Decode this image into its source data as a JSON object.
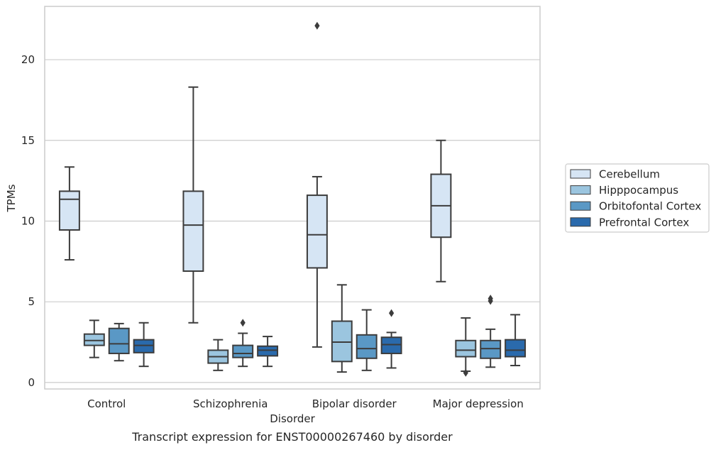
{
  "chart_data": {
    "type": "box",
    "title": "",
    "xlabel": "Disorder",
    "ylabel": "TPMs",
    "caption": "Transcript expression for ENST00000267460 by disorder",
    "categories": [
      "Control",
      "Schizophrenia",
      "Bipolar disorder",
      "Major depression"
    ],
    "y_ticks": [
      "0",
      "5",
      "10",
      "15",
      "20"
    ],
    "ylim": [
      -0.4,
      23.3
    ],
    "grid": "horizontal",
    "legend_position": "right",
    "series": [
      {
        "name": "Cerebellum",
        "color": "#d6e5f4",
        "boxes": [
          {
            "whisker_low": 7.6,
            "q1": 9.45,
            "median": 11.35,
            "q3": 11.85,
            "whisker_high": 13.35,
            "outliers": []
          },
          {
            "whisker_low": 3.7,
            "q1": 6.9,
            "median": 9.75,
            "q3": 11.85,
            "whisker_high": 18.3,
            "outliers": []
          },
          {
            "whisker_low": 2.2,
            "q1": 7.1,
            "median": 9.15,
            "q3": 11.6,
            "whisker_high": 12.75,
            "outliers": [
              22.1
            ]
          },
          {
            "whisker_low": 6.25,
            "q1": 9.0,
            "median": 10.95,
            "q3": 12.9,
            "whisker_high": 15.0,
            "outliers": []
          }
        ]
      },
      {
        "name": "Hipppocampus",
        "color": "#9bc5df",
        "boxes": [
          {
            "whisker_low": 1.55,
            "q1": 2.3,
            "median": 2.6,
            "q3": 3.0,
            "whisker_high": 3.85,
            "outliers": []
          },
          {
            "whisker_low": 0.75,
            "q1": 1.2,
            "median": 1.6,
            "q3": 2.0,
            "whisker_high": 2.65,
            "outliers": []
          },
          {
            "whisker_low": 0.65,
            "q1": 1.3,
            "median": 2.5,
            "q3": 3.8,
            "whisker_high": 6.05,
            "outliers": []
          },
          {
            "whisker_low": 0.7,
            "q1": 1.6,
            "median": 2.0,
            "q3": 2.6,
            "whisker_high": 4.0,
            "outliers": [
              0.6
            ]
          }
        ]
      },
      {
        "name": "Orbitofontal Cortex",
        "color": "#5a98c5",
        "boxes": [
          {
            "whisker_low": 1.35,
            "q1": 1.8,
            "median": 2.4,
            "q3": 3.35,
            "whisker_high": 3.65,
            "outliers": []
          },
          {
            "whisker_low": 1.0,
            "q1": 1.55,
            "median": 1.8,
            "q3": 2.3,
            "whisker_high": 3.05,
            "outliers": [
              3.7
            ]
          },
          {
            "whisker_low": 0.75,
            "q1": 1.5,
            "median": 2.1,
            "q3": 2.95,
            "whisker_high": 4.5,
            "outliers": []
          },
          {
            "whisker_low": 0.95,
            "q1": 1.5,
            "median": 2.1,
            "q3": 2.6,
            "whisker_high": 3.3,
            "outliers": [
              5.05,
              5.2
            ]
          }
        ]
      },
      {
        "name": "Prefrontal Cortex",
        "color": "#2a6aac",
        "boxes": [
          {
            "whisker_low": 1.0,
            "q1": 1.85,
            "median": 2.3,
            "q3": 2.65,
            "whisker_high": 3.7,
            "outliers": []
          },
          {
            "whisker_low": 1.0,
            "q1": 1.65,
            "median": 2.0,
            "q3": 2.25,
            "whisker_high": 2.85,
            "outliers": []
          },
          {
            "whisker_low": 0.9,
            "q1": 1.8,
            "median": 2.35,
            "q3": 2.8,
            "whisker_high": 3.1,
            "outliers": [
              4.3
            ]
          },
          {
            "whisker_low": 1.05,
            "q1": 1.6,
            "median": 2.0,
            "q3": 2.65,
            "whisker_high": 4.2,
            "outliers": []
          }
        ]
      }
    ]
  }
}
